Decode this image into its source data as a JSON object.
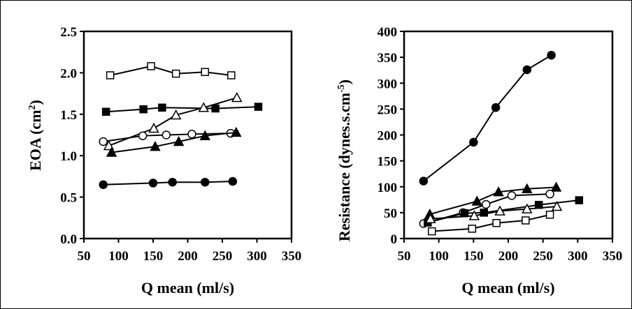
{
  "chart_data": [
    {
      "type": "scatter",
      "xlabel": "Q mean (ml/s)",
      "ylabel": "EOA (cm",
      "ylabel_sup": "2",
      "ylabel_end": ")",
      "xlim": [
        50,
        350
      ],
      "ylim": [
        0.0,
        2.5
      ],
      "x_ticks": [
        "50",
        "100",
        "150",
        "200",
        "250",
        "300",
        "350"
      ],
      "y_ticks": [
        "0.0",
        "0.5",
        "1.0",
        "1.5",
        "2.0",
        "2.5"
      ],
      "grid": false,
      "legend": "none",
      "series": [
        {
          "marker": "open-square",
          "points": [
            [
              88,
              1.97
            ],
            [
              147,
              2.08
            ],
            [
              183,
              1.99
            ],
            [
              225,
              2.01
            ],
            [
              263,
              1.97
            ]
          ]
        },
        {
          "marker": "filled-square",
          "points": [
            [
              82,
              1.53
            ],
            [
              136,
              1.56
            ],
            [
              163,
              1.58
            ],
            [
              240,
              1.57
            ],
            [
              302,
              1.59
            ]
          ]
        },
        {
          "marker": "open-triangle",
          "points": [
            [
              86,
              1.12
            ],
            [
              151,
              1.33
            ],
            [
              183,
              1.49
            ],
            [
              223,
              1.58
            ],
            [
              271,
              1.7
            ]
          ]
        },
        {
          "marker": "open-circle",
          "points": [
            [
              78,
              1.17
            ],
            [
              135,
              1.24
            ],
            [
              169,
              1.25
            ],
            [
              206,
              1.26
            ],
            [
              262,
              1.27
            ]
          ]
        },
        {
          "marker": "filled-triangle",
          "points": [
            [
              90,
              1.04
            ],
            [
              153,
              1.11
            ],
            [
              187,
              1.17
            ],
            [
              225,
              1.24
            ],
            [
              270,
              1.28
            ]
          ]
        },
        {
          "marker": "filled-circle",
          "points": [
            [
              78,
              0.65
            ],
            [
              150,
              0.67
            ],
            [
              178,
              0.68
            ],
            [
              225,
              0.68
            ],
            [
              265,
              0.69
            ]
          ]
        }
      ]
    },
    {
      "type": "scatter",
      "xlabel": "Q mean (ml/s)",
      "ylabel": "Resistance (dynes.s.cm",
      "ylabel_sup": "-5",
      "ylabel_end": ")",
      "xlim": [
        50,
        350
      ],
      "ylim": [
        0,
        400
      ],
      "x_ticks": [
        "50",
        "100",
        "150",
        "200",
        "250",
        "300",
        "350"
      ],
      "y_ticks": [
        "0",
        "50",
        "100",
        "150",
        "200",
        "250",
        "300",
        "350",
        "400"
      ],
      "grid": false,
      "legend": "none",
      "series": [
        {
          "marker": "filled-circle",
          "points": [
            [
              78,
              111
            ],
            [
              150,
              186
            ],
            [
              182,
              253
            ],
            [
              227,
              326
            ],
            [
              262,
              354
            ]
          ]
        },
        {
          "marker": "filled-triangle",
          "points": [
            [
              87,
              47
            ],
            [
              155,
              72
            ],
            [
              186,
              90
            ],
            [
              227,
              96
            ],
            [
              269,
              99
            ]
          ]
        },
        {
          "marker": "open-circle",
          "points": [
            [
              78,
              29
            ],
            [
              135,
              50
            ],
            [
              168,
              66
            ],
            [
              205,
              83
            ],
            [
              260,
              86
            ]
          ]
        },
        {
          "marker": "filled-square",
          "points": [
            [
              84,
              31
            ],
            [
              137,
              49
            ],
            [
              165,
              50
            ],
            [
              244,
              65
            ],
            [
              302,
              74
            ]
          ]
        },
        {
          "marker": "open-triangle",
          "points": [
            [
              88,
              38
            ],
            [
              151,
              44
            ],
            [
              188,
              53
            ],
            [
              227,
              57
            ],
            [
              270,
              62
            ]
          ]
        },
        {
          "marker": "open-square",
          "points": [
            [
              90,
              14
            ],
            [
              148,
              19
            ],
            [
              183,
              30
            ],
            [
              225,
              35
            ],
            [
              260,
              46
            ]
          ]
        }
      ]
    }
  ]
}
